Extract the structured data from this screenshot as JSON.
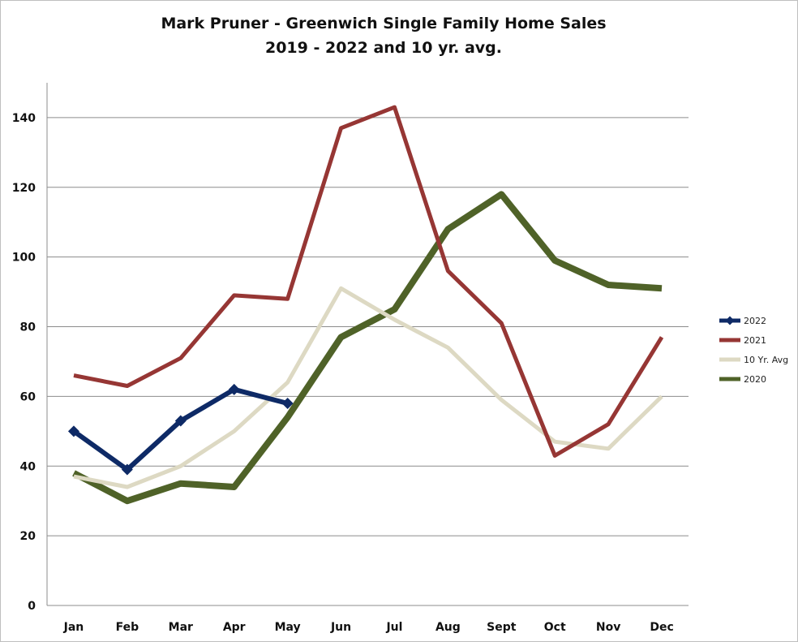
{
  "chart_data": {
    "type": "line",
    "title": "Mark Pruner - Greenwich Single Family Home Sales",
    "subtitle": "2019 - 2022 and 10 yr. avg.",
    "xlabel": "",
    "ylabel": "",
    "categories": [
      "Jan",
      "Feb",
      "Mar",
      "Apr",
      "May",
      "Jun",
      "Jul",
      "Aug",
      "Sept",
      "Oct",
      "Nov",
      "Dec"
    ],
    "ylim": [
      0,
      150
    ],
    "yticks": [
      0,
      20,
      40,
      60,
      80,
      100,
      120,
      140
    ],
    "grid": true,
    "legend_position": "right",
    "series": [
      {
        "name": "2022",
        "color": "#0e2a66",
        "marker": "diamond",
        "values": [
          50,
          39,
          53,
          62,
          58,
          null,
          null,
          null,
          null,
          null,
          null,
          null
        ]
      },
      {
        "name": "2021",
        "color": "#963634",
        "marker": "none",
        "values": [
          66,
          63,
          71,
          89,
          88,
          137,
          143,
          96,
          81,
          43,
          52,
          77
        ]
      },
      {
        "name": "10 Yr. Avg",
        "color": "#ddd9c3",
        "marker": "none",
        "values": [
          37,
          34,
          40,
          50,
          64,
          91,
          82,
          74,
          59,
          47,
          45,
          60
        ]
      },
      {
        "name": "2020",
        "color": "#4f6228",
        "marker": "none",
        "values": [
          38,
          30,
          35,
          34,
          54,
          77,
          85,
          108,
          118,
          99,
          92,
          91
        ]
      }
    ]
  }
}
